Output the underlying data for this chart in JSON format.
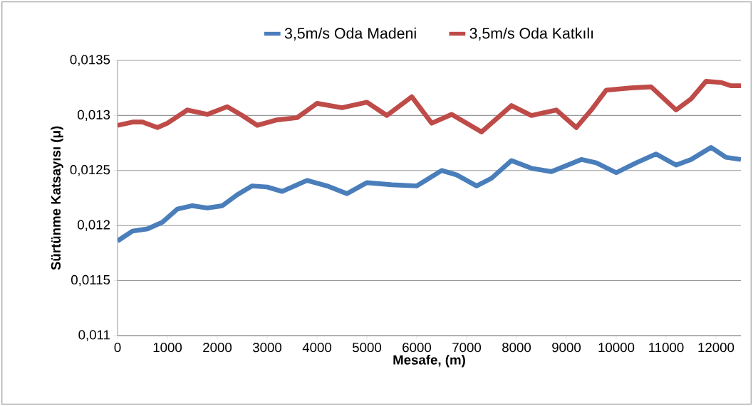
{
  "chart_data": {
    "type": "line",
    "xlabel": "Mesafe, (m)",
    "ylabel": "Sürtünme Katsayısı (μ)",
    "xlim": [
      0,
      12500
    ],
    "xticks": [
      0,
      1000,
      2000,
      3000,
      4000,
      5000,
      6000,
      7000,
      8000,
      9000,
      10000,
      11000,
      12000
    ],
    "ylim": [
      0.011,
      0.0135
    ],
    "yticks": [
      {
        "value": 0.011,
        "label": "0,011"
      },
      {
        "value": 0.0115,
        "label": "0,0115"
      },
      {
        "value": 0.012,
        "label": "0,012"
      },
      {
        "value": 0.0125,
        "label": "0,0125"
      },
      {
        "value": 0.013,
        "label": "0,013"
      },
      {
        "value": 0.0135,
        "label": "0,0135"
      }
    ],
    "grid": "y",
    "legend": "top",
    "marker": "none",
    "line_style": "solid",
    "series": [
      {
        "name": "3,5m/s Oda Madeni",
        "color": "#4a7ebb",
        "x": [
          0,
          300,
          600,
          900,
          1200,
          1500,
          1800,
          2100,
          2400,
          2700,
          3000,
          3300,
          3800,
          4200,
          4600,
          5000,
          5500,
          6000,
          6500,
          6800,
          7200,
          7500,
          7900,
          8300,
          8700,
          9300,
          9600,
          10000,
          10400,
          10800,
          11200,
          11500,
          11900,
          12200,
          12500
        ],
        "values": [
          0.01186,
          0.01195,
          0.01197,
          0.01203,
          0.01215,
          0.01218,
          0.01216,
          0.01218,
          0.01228,
          0.01236,
          0.01235,
          0.01231,
          0.01241,
          0.01236,
          0.01229,
          0.01239,
          0.01237,
          0.01236,
          0.0125,
          0.01246,
          0.01236,
          0.01243,
          0.01259,
          0.01252,
          0.01249,
          0.0126,
          0.01257,
          0.01248,
          0.01257,
          0.01265,
          0.01255,
          0.0126,
          0.01271,
          0.01262,
          0.0126
        ]
      },
      {
        "name": "3,5m/s Oda Katkılı",
        "color": "#be4b48",
        "x": [
          0,
          300,
          500,
          800,
          1000,
          1400,
          1800,
          2200,
          2500,
          2800,
          3200,
          3600,
          4000,
          4500,
          5000,
          5400,
          5900,
          6300,
          6700,
          7300,
          7900,
          8300,
          8800,
          9200,
          9500,
          9800,
          10300,
          10700,
          11200,
          11500,
          11800,
          12100,
          12300,
          12500
        ],
        "values": [
          0.01291,
          0.01294,
          0.01294,
          0.01289,
          0.01293,
          0.01305,
          0.01301,
          0.01308,
          0.013,
          0.01291,
          0.01296,
          0.01298,
          0.01311,
          0.01307,
          0.01312,
          0.013,
          0.01317,
          0.01293,
          0.01301,
          0.01285,
          0.01309,
          0.013,
          0.01305,
          0.01289,
          0.01305,
          0.01323,
          0.01325,
          0.01326,
          0.01305,
          0.01315,
          0.01331,
          0.0133,
          0.01327,
          0.01327
        ]
      }
    ]
  }
}
